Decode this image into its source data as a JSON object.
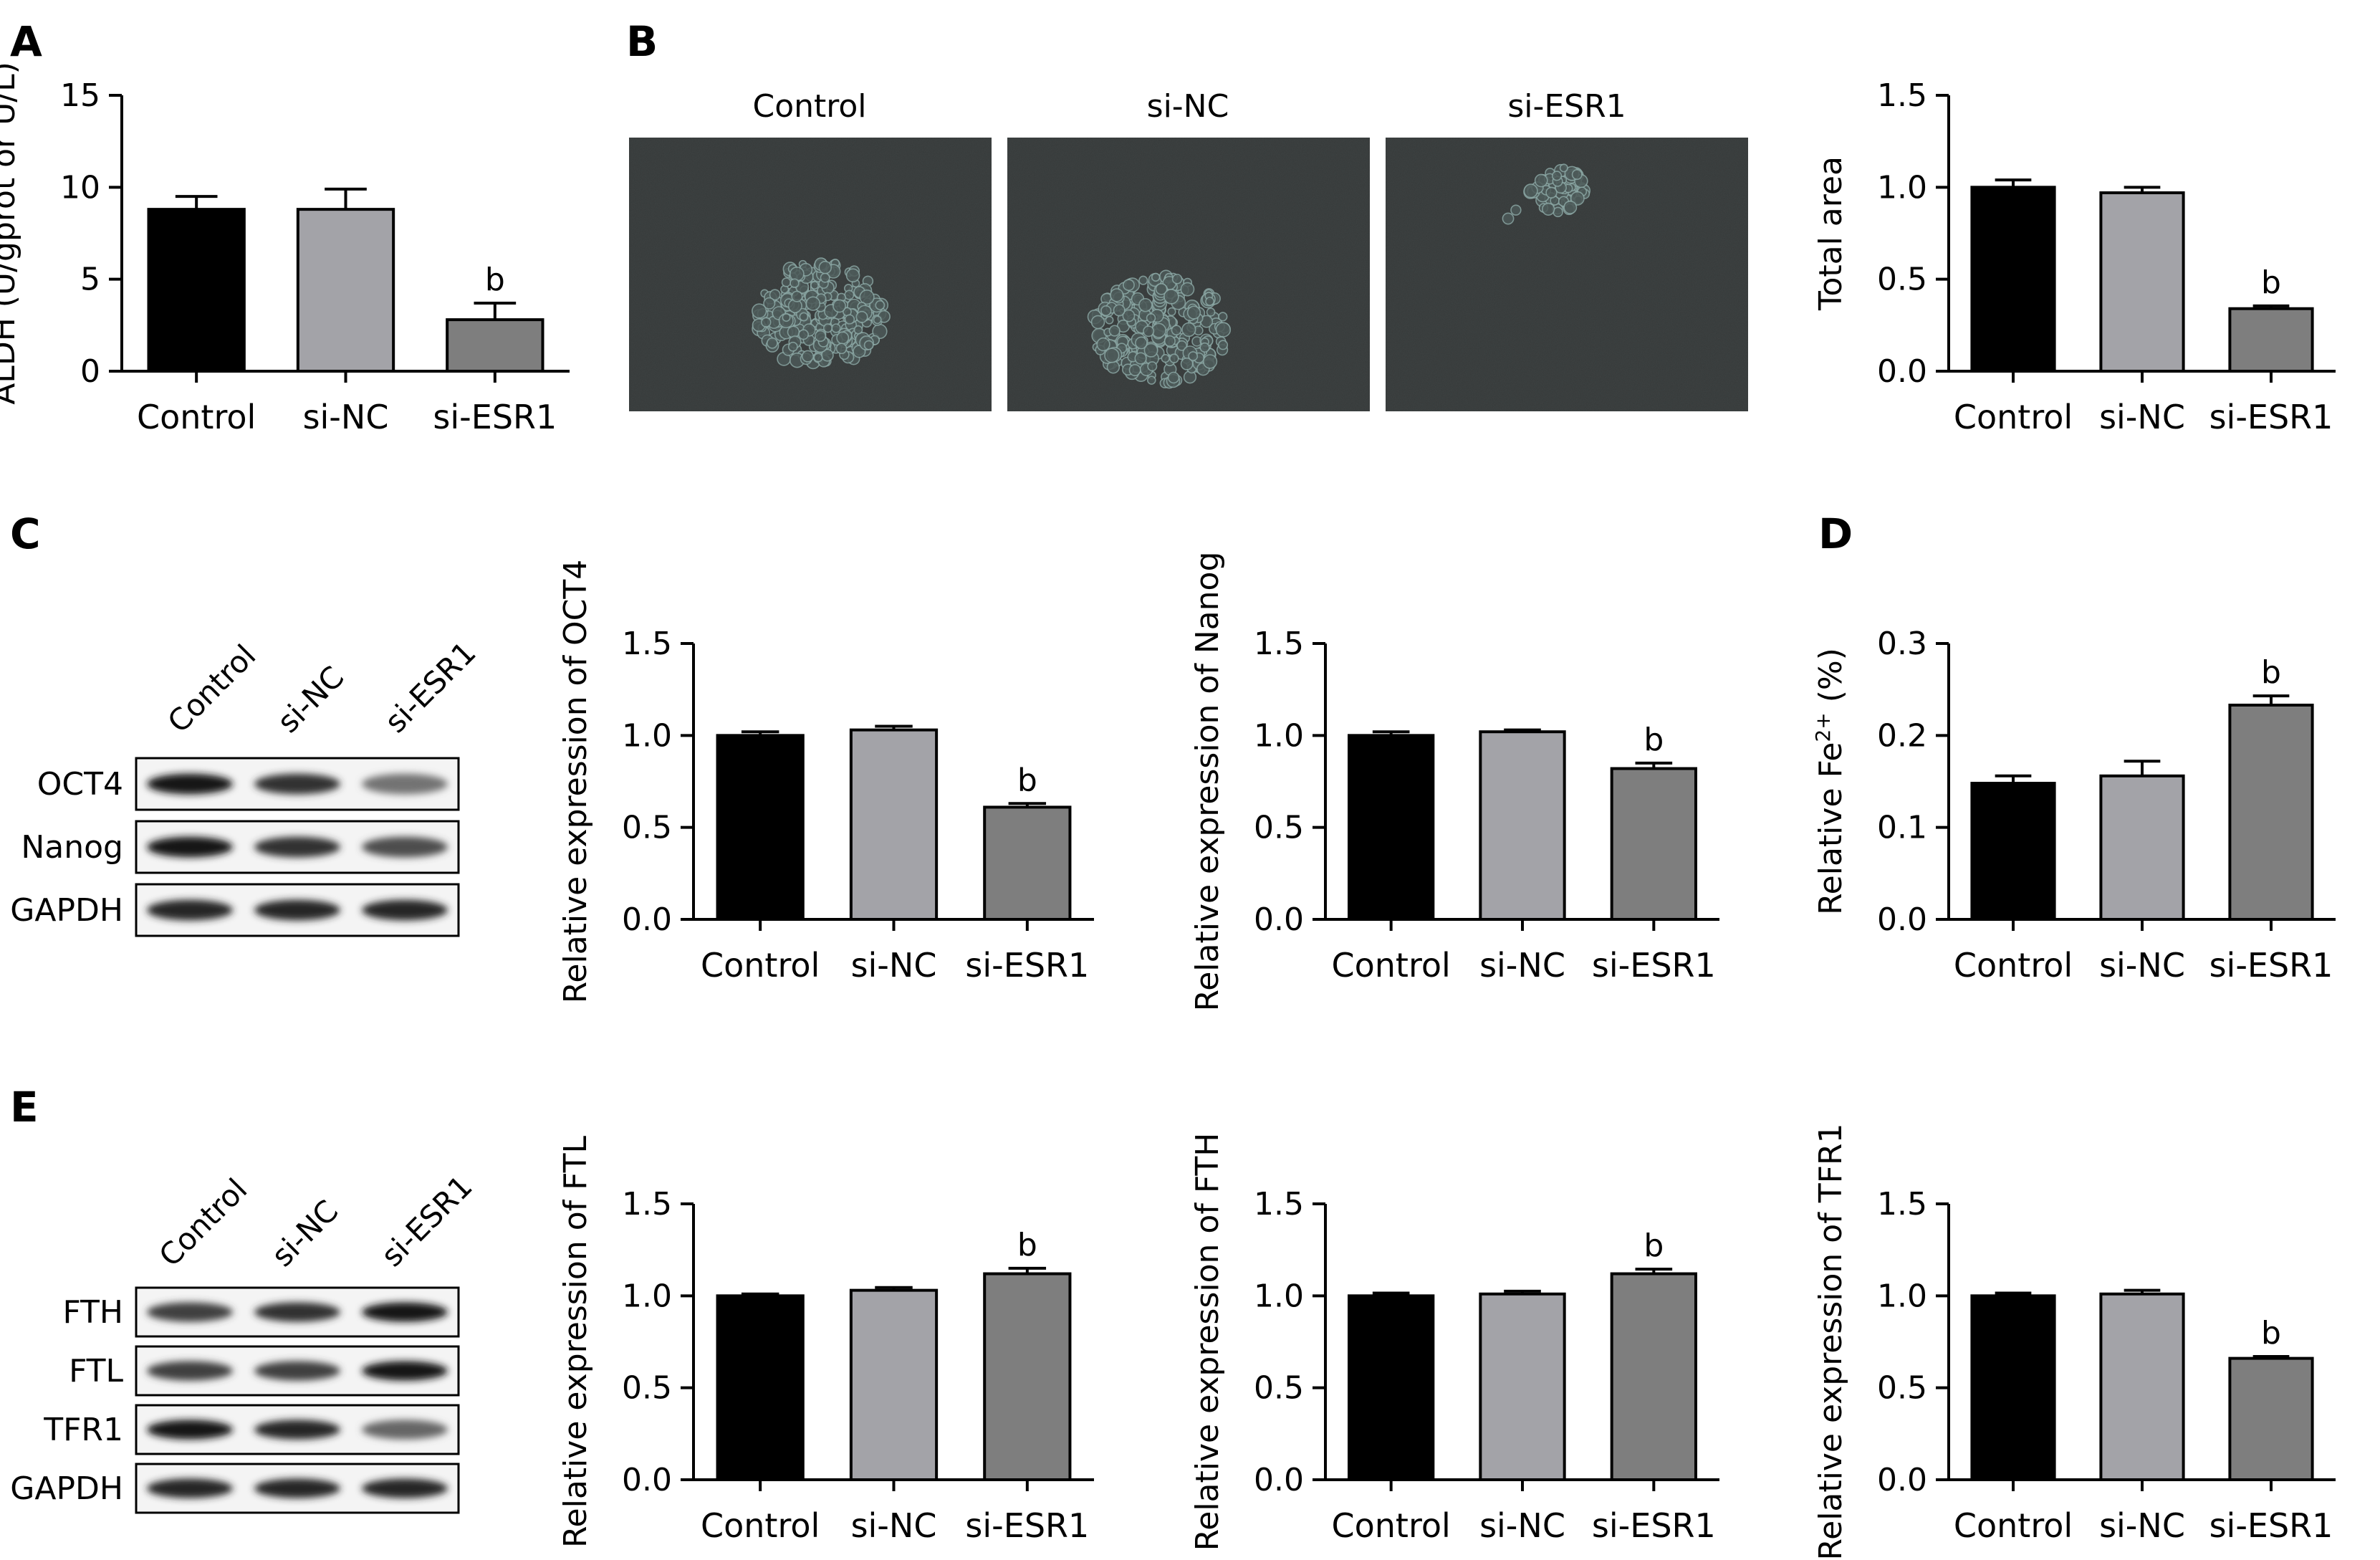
{
  "panel_letters": [
    "A",
    "B",
    "C",
    "D",
    "E"
  ],
  "group_colors": [
    "#000000",
    "#a3a3a8",
    "#7e7e7e"
  ],
  "images": {
    "titles": [
      "Control",
      "si-NC",
      "si-ESR1"
    ],
    "background": "#353939"
  },
  "blots": {
    "C": {
      "lanes": [
        "Control",
        "si-NC",
        "si-ESR1"
      ],
      "rows": [
        {
          "label": "OCT4",
          "intensity": [
            0.9,
            0.8,
            0.55
          ]
        },
        {
          "label": "Nanog",
          "intensity": [
            0.9,
            0.8,
            0.7
          ]
        },
        {
          "label": "GAPDH",
          "intensity": [
            0.85,
            0.85,
            0.85
          ]
        }
      ]
    },
    "E": {
      "lanes": [
        "Control",
        "si-NC",
        "si-ESR1"
      ],
      "rows": [
        {
          "label": "FTH",
          "intensity": [
            0.75,
            0.8,
            0.9
          ]
        },
        {
          "label": "FTL",
          "intensity": [
            0.75,
            0.75,
            0.9
          ]
        },
        {
          "label": "TFR1",
          "intensity": [
            0.9,
            0.85,
            0.6
          ]
        },
        {
          "label": "GAPDH",
          "intensity": [
            0.85,
            0.85,
            0.85
          ]
        }
      ]
    }
  },
  "chart_data": [
    {
      "id": "A-ALDH",
      "type": "bar",
      "categories": [
        "Control",
        "si-NC",
        "si-ESR1"
      ],
      "values": [
        8.8,
        8.8,
        2.8
      ],
      "errors": [
        0.7,
        1.1,
        0.9
      ],
      "annotations": [
        "",
        "",
        "b"
      ],
      "ylabel": "ALDH (U/gprot or U/L)",
      "ylim": [
        0,
        15
      ],
      "yticks": [
        0,
        5,
        10,
        15
      ],
      "ytick_labels": [
        "0",
        "5",
        "10",
        "15"
      ]
    },
    {
      "id": "B-area",
      "type": "bar",
      "categories": [
        "Control",
        "si-NC",
        "si-ESR1"
      ],
      "values": [
        1.0,
        0.97,
        0.34
      ],
      "errors": [
        0.04,
        0.03,
        0.015
      ],
      "annotations": [
        "",
        "",
        "b"
      ],
      "ylabel": "Total area",
      "ylim": [
        0,
        1.5
      ],
      "yticks": [
        0,
        0.5,
        1.0,
        1.5
      ],
      "ytick_labels": [
        "0.0",
        "0.5",
        "1.0",
        "1.5"
      ]
    },
    {
      "id": "C-OCT4",
      "type": "bar",
      "categories": [
        "Control",
        "si-NC",
        "si-ESR1"
      ],
      "values": [
        1.0,
        1.03,
        0.61
      ],
      "errors": [
        0.02,
        0.02,
        0.02
      ],
      "annotations": [
        "",
        "",
        "b"
      ],
      "ylabel": "Relative expression of OCT4",
      "ylim": [
        0,
        1.5
      ],
      "yticks": [
        0,
        0.5,
        1.0,
        1.5
      ],
      "ytick_labels": [
        "0.0",
        "0.5",
        "1.0",
        "1.5"
      ]
    },
    {
      "id": "C-Nanog",
      "type": "bar",
      "categories": [
        "Control",
        "si-NC",
        "si-ESR1"
      ],
      "values": [
        1.0,
        1.02,
        0.82
      ],
      "errors": [
        0.02,
        0.01,
        0.03
      ],
      "annotations": [
        "",
        "",
        "b"
      ],
      "ylabel": "Relative expression of Nanog",
      "ylim": [
        0,
        1.5
      ],
      "yticks": [
        0,
        0.5,
        1.0,
        1.5
      ],
      "ytick_labels": [
        "0.0",
        "0.5",
        "1.0",
        "1.5"
      ]
    },
    {
      "id": "D-Fe",
      "type": "bar",
      "categories": [
        "Control",
        "si-NC",
        "si-ESR1"
      ],
      "values": [
        0.148,
        0.156,
        0.233
      ],
      "errors": [
        0.008,
        0.016,
        0.01
      ],
      "annotations": [
        "",
        "",
        "b"
      ],
      "ylabel": "Relative Fe2+ (%)",
      "ylim": [
        0,
        0.3
      ],
      "yticks": [
        0,
        0.1,
        0.2,
        0.3
      ],
      "ytick_labels": [
        "0.0",
        "0.1",
        "0.2",
        "0.3"
      ]
    },
    {
      "id": "E-FTL",
      "type": "bar",
      "categories": [
        "Control",
        "si-NC",
        "si-ESR1"
      ],
      "values": [
        1.0,
        1.03,
        1.12
      ],
      "errors": [
        0.01,
        0.015,
        0.03
      ],
      "annotations": [
        "",
        "",
        "b"
      ],
      "ylabel": "Relative expression of FTL",
      "ylim": [
        0,
        1.5
      ],
      "yticks": [
        0,
        0.5,
        1.0,
        1.5
      ],
      "ytick_labels": [
        "0.0",
        "0.5",
        "1.0",
        "1.5"
      ]
    },
    {
      "id": "E-FTH",
      "type": "bar",
      "categories": [
        "Control",
        "si-NC",
        "si-ESR1"
      ],
      "values": [
        1.0,
        1.01,
        1.12
      ],
      "errors": [
        0.015,
        0.015,
        0.025
      ],
      "annotations": [
        "",
        "",
        "b"
      ],
      "ylabel": "Relative expression of FTH",
      "ylim": [
        0,
        1.5
      ],
      "yticks": [
        0,
        0.5,
        1.0,
        1.5
      ],
      "ytick_labels": [
        "0.0",
        "0.5",
        "1.0",
        "1.5"
      ]
    },
    {
      "id": "E-TFR1",
      "type": "bar",
      "categories": [
        "Control",
        "si-NC",
        "si-ESR1"
      ],
      "values": [
        1.0,
        1.01,
        0.66
      ],
      "errors": [
        0.015,
        0.02,
        0.01
      ],
      "annotations": [
        "",
        "",
        "b"
      ],
      "ylabel": "Relative expression of TFR1",
      "ylim": [
        0,
        1.5
      ],
      "yticks": [
        0,
        0.5,
        1.0,
        1.5
      ],
      "ytick_labels": [
        "0.0",
        "0.5",
        "1.0",
        "1.5"
      ]
    }
  ]
}
